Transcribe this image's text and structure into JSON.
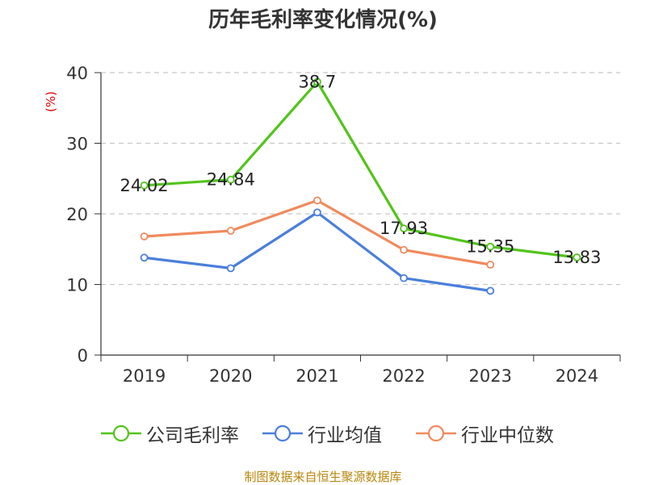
{
  "chart_data": {
    "type": "line",
    "title": "历年毛利率变化情况(%)",
    "ylabel": "(%)",
    "xlabel": "",
    "categories": [
      "2019",
      "2020",
      "2021",
      "2022",
      "2023",
      "2024"
    ],
    "ylim": [
      0,
      40
    ],
    "yticks": [
      0,
      10,
      20,
      30,
      40
    ],
    "grid": "horizontal dashed",
    "legend_position": "bottom",
    "series": [
      {
        "name": "公司毛利率",
        "color": "#52c41a",
        "values": [
          24.02,
          24.84,
          38.7,
          17.93,
          15.35,
          13.83
        ],
        "data_labels": [
          "24.02",
          "24.84",
          "38.7",
          "17.93",
          "15.35",
          "13.83"
        ]
      },
      {
        "name": "行业均值",
        "color": "#4a7fdb",
        "values": [
          13.8,
          12.3,
          20.2,
          10.9,
          9.1,
          null
        ]
      },
      {
        "name": "行业中位数",
        "color": "#f08a5d",
        "values": [
          16.8,
          17.6,
          21.9,
          14.9,
          12.8,
          null
        ]
      }
    ]
  },
  "source": "制图数据来自恒生聚源数据库"
}
